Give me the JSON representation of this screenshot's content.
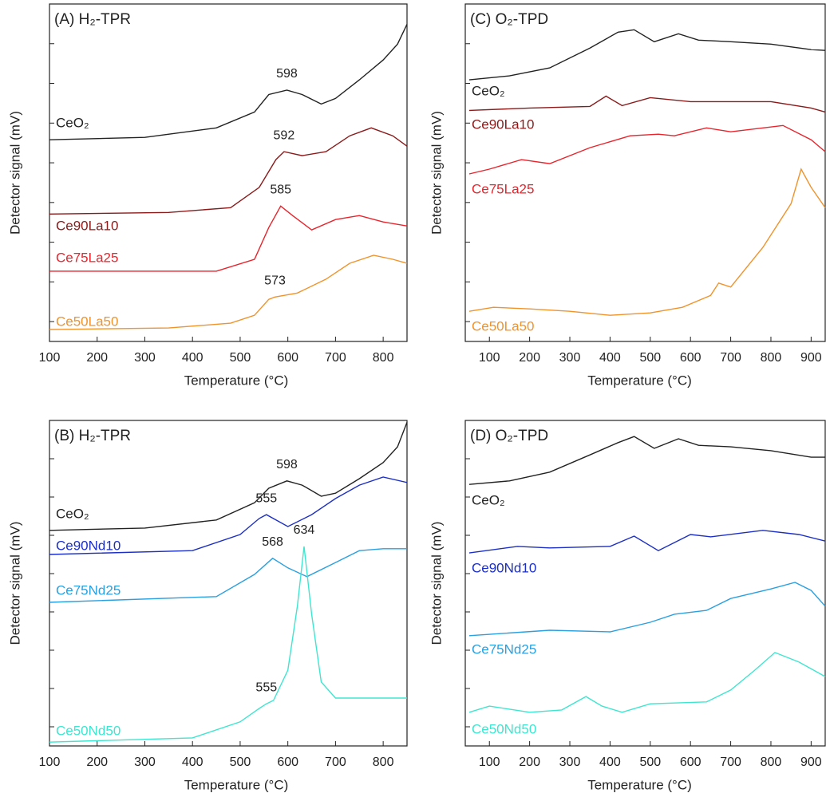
{
  "chart_data": [
    {
      "type": "line",
      "title": "(A) H₂-TPR",
      "x_label": "Temperature (°C)",
      "y_label": "Detector signal (mV)",
      "xlim": [
        100,
        850
      ],
      "xticks": [
        100,
        200,
        300,
        400,
        500,
        600,
        700,
        800
      ],
      "ylim": [
        0,
        8.5
      ],
      "yticks": [
        0.5,
        1.5,
        2.5,
        3.5,
        4.5,
        5.5,
        6.5,
        7.5
      ],
      "series": [
        {
          "name": "CeO₂",
          "color": "#222222",
          "x": [
            100,
            300,
            450,
            530,
            560,
            598,
            630,
            670,
            700,
            750,
            800,
            830,
            850
          ],
          "values": [
            5.08,
            5.14,
            5.38,
            5.78,
            6.22,
            6.33,
            6.22,
            5.98,
            6.12,
            6.59,
            7.09,
            7.49,
            7.99
          ],
          "peaks": [
            598
          ]
        },
        {
          "name": "Ce90La10",
          "color": "#8b1a1a",
          "x": [
            100,
            350,
            480,
            540,
            575,
            592,
            630,
            680,
            730,
            775,
            820,
            850
          ],
          "values": [
            3.21,
            3.25,
            3.37,
            3.88,
            4.58,
            4.78,
            4.68,
            4.78,
            5.18,
            5.38,
            5.18,
            4.92
          ],
          "peaks": [
            592
          ]
        },
        {
          "name": "Ce75La25",
          "color": "#e8242c",
          "x": [
            100,
            450,
            530,
            560,
            585,
            610,
            650,
            700,
            750,
            800,
            850
          ],
          "values": [
            1.77,
            1.77,
            2.07,
            2.87,
            3.41,
            3.17,
            2.81,
            3.07,
            3.17,
            3.01,
            2.91
          ],
          "peaks": [
            585
          ]
        },
        {
          "name": "Ce50La50",
          "color": "#f0932b",
          "x": [
            100,
            350,
            480,
            530,
            560,
            573,
            620,
            680,
            730,
            780,
            820,
            850
          ],
          "values": [
            0.3,
            0.34,
            0.46,
            0.66,
            1.06,
            1.12,
            1.22,
            1.57,
            1.97,
            2.17,
            2.07,
            1.97
          ],
          "peaks": [
            573
          ]
        }
      ]
    },
    {
      "type": "line",
      "title": "(B) H₂-TPR",
      "x_label": "Temperature (°C)",
      "y_label": "Detector signal (mV)",
      "xlim": [
        100,
        850
      ],
      "xticks": [
        100,
        200,
        300,
        400,
        500,
        600,
        700,
        800
      ],
      "ylim": [
        0,
        8.5
      ],
      "yticks": [
        0.5,
        1.5,
        2.5,
        3.5,
        4.5,
        5.5,
        6.5,
        7.5
      ],
      "series": [
        {
          "name": "CeO₂",
          "color": "#222222",
          "x": [
            100,
            300,
            450,
            530,
            560,
            598,
            630,
            670,
            700,
            750,
            800,
            830,
            850
          ],
          "values": [
            5.63,
            5.69,
            5.9,
            6.35,
            6.73,
            6.92,
            6.81,
            6.52,
            6.6,
            6.98,
            7.4,
            7.81,
            8.45
          ],
          "peaks": [
            598
          ]
        },
        {
          "name": "Ce90Nd10",
          "color": "#1c2fc4",
          "x": [
            100,
            400,
            500,
            540,
            555,
            600,
            650,
            700,
            750,
            800,
            850
          ],
          "values": [
            5.0,
            5.1,
            5.52,
            5.94,
            6.04,
            5.73,
            6.04,
            6.46,
            6.81,
            7.02,
            6.88
          ],
          "peaks": [
            555
          ]
        },
        {
          "name": "Ce75Nd25",
          "color": "#2aa0e0",
          "x": [
            100,
            450,
            530,
            568,
            600,
            640,
            700,
            750,
            800,
            850
          ],
          "values": [
            3.75,
            3.9,
            4.48,
            4.9,
            4.65,
            4.42,
            4.79,
            5.1,
            5.15,
            5.15
          ],
          "peaks": [
            568
          ]
        },
        {
          "name": "Ce50Nd50",
          "color": "#3ee6d0",
          "x": [
            100,
            400,
            500,
            540,
            555,
            570,
            600,
            620,
            634,
            650,
            670,
            700,
            800,
            850
          ],
          "values": [
            0.1,
            0.21,
            0.63,
            0.98,
            1.1,
            1.19,
            1.98,
            3.65,
            5.21,
            3.44,
            1.67,
            1.25,
            1.25,
            1.25
          ],
          "peaks": [
            555,
            634
          ]
        }
      ]
    },
    {
      "type": "line",
      "title": "(C) O₂-TPD",
      "x_label": "Temperature (°C)",
      "y_label": "Detector signal (mV)",
      "xlim": [
        40,
        935
      ],
      "xticks": [
        100,
        200,
        300,
        400,
        500,
        600,
        700,
        800,
        900
      ],
      "ylim": [
        0,
        8.5
      ],
      "yticks": [
        0.5,
        1.5,
        2.5,
        3.5,
        4.5,
        5.5,
        6.5,
        7.5
      ],
      "series": [
        {
          "name": "CeO₂",
          "color": "#222222",
          "x": [
            50,
            150,
            250,
            350,
            420,
            460,
            510,
            570,
            620,
            700,
            800,
            900,
            935
          ],
          "values": [
            6.59,
            6.69,
            6.89,
            7.39,
            7.79,
            7.85,
            7.55,
            7.75,
            7.59,
            7.55,
            7.49,
            7.35,
            7.33
          ]
        },
        {
          "name": "Ce90La10",
          "color": "#8b1a1a",
          "x": [
            50,
            200,
            350,
            390,
            430,
            500,
            600,
            800,
            900,
            935
          ],
          "values": [
            5.82,
            5.88,
            5.92,
            6.18,
            5.94,
            6.14,
            6.04,
            6.04,
            5.88,
            5.78
          ]
        },
        {
          "name": "Ce75La25",
          "color": "#e8242c",
          "x": [
            50,
            100,
            180,
            250,
            350,
            450,
            520,
            560,
            640,
            700,
            830,
            900,
            935
          ],
          "values": [
            4.22,
            4.34,
            4.58,
            4.48,
            4.88,
            5.18,
            5.22,
            5.18,
            5.38,
            5.28,
            5.44,
            5.08,
            4.78
          ]
        },
        {
          "name": "Ce50La50",
          "color": "#f0932b",
          "x": [
            50,
            110,
            200,
            300,
            400,
            500,
            580,
            650,
            670,
            700,
            780,
            850,
            875,
            900,
            935
          ],
          "values": [
            0.76,
            0.86,
            0.82,
            0.76,
            0.66,
            0.72,
            0.86,
            1.16,
            1.47,
            1.37,
            2.37,
            3.47,
            4.34,
            3.88,
            3.37
          ]
        }
      ]
    },
    {
      "type": "line",
      "title": "(D) O₂-TPD",
      "x_label": "Temperature (°C)",
      "y_label": "Detector signal (mV)",
      "xlim": [
        40,
        935
      ],
      "xticks": [
        100,
        200,
        300,
        400,
        500,
        600,
        700,
        800,
        900
      ],
      "ylim": [
        0,
        8.5
      ],
      "yticks": [
        0.5,
        1.5,
        2.5,
        3.5,
        4.5,
        5.5,
        6.5,
        7.5
      ],
      "series": [
        {
          "name": "CeO₂",
          "color": "#222222",
          "x": [
            50,
            150,
            250,
            350,
            420,
            460,
            510,
            570,
            620,
            700,
            800,
            900,
            935
          ],
          "values": [
            6.83,
            6.92,
            7.15,
            7.6,
            7.92,
            8.08,
            7.77,
            8.02,
            7.85,
            7.81,
            7.71,
            7.54,
            7.54
          ]
        },
        {
          "name": "Ce90Nd10",
          "color": "#1c2fc4",
          "x": [
            50,
            170,
            250,
            400,
            460,
            520,
            600,
            650,
            780,
            870,
            935
          ],
          "values": [
            5.04,
            5.21,
            5.17,
            5.21,
            5.48,
            5.1,
            5.52,
            5.46,
            5.63,
            5.52,
            5.35
          ]
        },
        {
          "name": "Ce75Nd25",
          "color": "#2aa0e0",
          "x": [
            50,
            250,
            400,
            500,
            560,
            640,
            700,
            800,
            860,
            900,
            935
          ],
          "values": [
            2.88,
            3.02,
            2.98,
            3.23,
            3.44,
            3.54,
            3.85,
            4.1,
            4.27,
            4.06,
            3.65
          ]
        },
        {
          "name": "Ce50Nd50",
          "color": "#3ee6d0",
          "x": [
            50,
            100,
            200,
            280,
            340,
            380,
            430,
            500,
            640,
            700,
            760,
            810,
            870,
            935
          ],
          "values": [
            0.88,
            1.04,
            0.88,
            0.94,
            1.29,
            1.04,
            0.88,
            1.1,
            1.15,
            1.46,
            1.98,
            2.44,
            2.19,
            1.81
          ]
        }
      ]
    }
  ]
}
